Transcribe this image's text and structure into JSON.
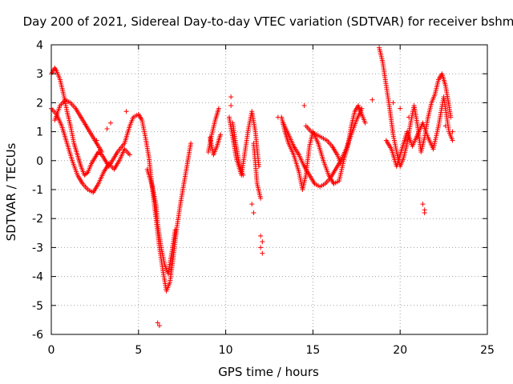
{
  "chart_data": {
    "type": "scatter",
    "title": "Day 200 of 2021, Sidereal Day-to-day VTEC variation (SDTVAR) for receiver bshm",
    "xlabel": "GPS time / hours",
    "ylabel": "SDTVAR / TECUs",
    "xlim": [
      0,
      25
    ],
    "ylim": [
      -6,
      4
    ],
    "x_ticks": [
      0,
      5,
      10,
      15,
      20,
      25
    ],
    "y_ticks": [
      -6,
      -5,
      -4,
      -3,
      -2,
      -1,
      0,
      1,
      2,
      3,
      4
    ],
    "grid": true,
    "marker": "+",
    "color": "#ff0000",
    "series": [
      {
        "name": "SDTVAR",
        "trace": [
          [
            0.0,
            3.0
          ],
          [
            0.1,
            3.1
          ],
          [
            0.2,
            3.2
          ],
          [
            0.3,
            3.1
          ],
          [
            0.5,
            2.8
          ],
          [
            0.7,
            2.3
          ],
          [
            0.9,
            1.7
          ],
          [
            1.1,
            1.2
          ],
          [
            1.3,
            0.6
          ],
          [
            1.5,
            0.2
          ],
          [
            1.7,
            -0.2
          ],
          [
            1.9,
            -0.5
          ],
          [
            2.1,
            -0.4
          ],
          [
            2.3,
            -0.1
          ],
          [
            2.5,
            0.1
          ],
          [
            2.7,
            0.3
          ],
          [
            2.9,
            0.2
          ],
          [
            3.1,
            0.0
          ],
          [
            3.3,
            -0.2
          ],
          [
            3.5,
            0.0
          ],
          [
            3.8,
            0.3
          ],
          [
            4.2,
            0.6
          ],
          [
            4.5,
            1.2
          ],
          [
            4.7,
            1.5
          ],
          [
            5.0,
            1.6
          ],
          [
            5.2,
            1.4
          ],
          [
            5.4,
            0.8
          ],
          [
            5.6,
            0.1
          ],
          [
            5.8,
            -1.0
          ],
          [
            6.0,
            -2.0
          ],
          [
            6.2,
            -3.0
          ],
          [
            6.4,
            -3.8
          ],
          [
            6.6,
            -4.5
          ],
          [
            6.8,
            -4.2
          ],
          [
            7.0,
            -3.3
          ],
          [
            7.2,
            -2.3
          ],
          [
            7.4,
            -1.5
          ],
          [
            7.6,
            -0.8
          ],
          [
            7.8,
            -0.1
          ],
          [
            8.0,
            0.6
          ],
          [
            9.0,
            0.3
          ],
          [
            9.2,
            0.9
          ],
          [
            9.4,
            1.4
          ],
          [
            9.6,
            1.8
          ],
          [
            10.2,
            1.5
          ],
          [
            10.4,
            0.8
          ],
          [
            10.6,
            0.1
          ],
          [
            10.9,
            -0.5
          ],
          [
            11.1,
            0.3
          ],
          [
            11.3,
            1.1
          ],
          [
            11.5,
            1.7
          ],
          [
            11.7,
            1.0
          ],
          [
            11.9,
            -0.2
          ],
          [
            13.2,
            1.5
          ],
          [
            13.4,
            1.0
          ],
          [
            13.6,
            0.6
          ],
          [
            13.9,
            0.2
          ],
          [
            14.2,
            -0.4
          ],
          [
            14.4,
            -1.0
          ],
          [
            14.6,
            -0.5
          ],
          [
            14.8,
            0.5
          ],
          [
            15.0,
            1.0
          ],
          [
            15.3,
            0.6
          ],
          [
            15.6,
            0.0
          ],
          [
            15.9,
            -0.5
          ],
          [
            16.2,
            -0.8
          ],
          [
            16.5,
            -0.7
          ],
          [
            16.8,
            0.1
          ],
          [
            17.0,
            0.5
          ],
          [
            17.2,
            1.2
          ],
          [
            17.4,
            1.7
          ],
          [
            17.6,
            1.9
          ],
          [
            17.8,
            1.6
          ],
          [
            18.0,
            1.3
          ],
          [
            18.8,
            3.9
          ],
          [
            19.0,
            3.4
          ],
          [
            19.2,
            2.6
          ],
          [
            19.4,
            1.8
          ],
          [
            19.6,
            0.9
          ],
          [
            19.8,
            0.3
          ],
          [
            20.0,
            -0.2
          ],
          [
            20.2,
            0.1
          ],
          [
            20.4,
            0.6
          ],
          [
            20.6,
            1.3
          ],
          [
            20.8,
            1.9
          ],
          [
            21.0,
            1.2
          ],
          [
            21.2,
            0.3
          ],
          [
            21.4,
            0.8
          ],
          [
            21.6,
            1.5
          ],
          [
            21.8,
            2.0
          ],
          [
            22.0,
            2.3
          ],
          [
            22.2,
            2.8
          ],
          [
            22.4,
            3.0
          ],
          [
            22.6,
            2.6
          ],
          [
            22.8,
            1.9
          ],
          [
            22.9,
            1.5
          ]
        ],
        "trace2": [
          [
            0.0,
            1.8
          ],
          [
            0.3,
            1.6
          ],
          [
            0.6,
            1.2
          ],
          [
            0.9,
            0.6
          ],
          [
            1.2,
            0.0
          ],
          [
            1.5,
            -0.5
          ],
          [
            1.8,
            -0.8
          ],
          [
            2.1,
            -1.0
          ],
          [
            2.4,
            -1.1
          ],
          [
            2.7,
            -0.8
          ],
          [
            3.0,
            -0.4
          ],
          [
            3.3,
            -0.1
          ],
          [
            3.6,
            -0.3
          ],
          [
            3.9,
            0.0
          ],
          [
            4.2,
            0.4
          ],
          [
            4.5,
            0.2
          ],
          [
            0.2,
            1.4
          ],
          [
            0.5,
            1.9
          ],
          [
            0.8,
            2.1
          ],
          [
            1.1,
            2.0
          ],
          [
            1.4,
            1.8
          ],
          [
            1.7,
            1.5
          ],
          [
            2.0,
            1.2
          ],
          [
            2.3,
            0.9
          ],
          [
            2.6,
            0.6
          ],
          [
            2.9,
            0.3
          ],
          [
            5.5,
            -0.3
          ],
          [
            5.8,
            -0.9
          ],
          [
            6.0,
            -1.5
          ],
          [
            6.1,
            -2.2
          ],
          [
            6.3,
            -3.0
          ],
          [
            6.5,
            -3.6
          ],
          [
            6.7,
            -3.9
          ],
          [
            6.9,
            -3.2
          ],
          [
            7.1,
            -2.4
          ],
          [
            9.1,
            0.8
          ],
          [
            9.3,
            0.2
          ],
          [
            9.5,
            0.5
          ],
          [
            9.7,
            0.9
          ],
          [
            10.4,
            1.3
          ],
          [
            10.6,
            0.5
          ],
          [
            10.8,
            -0.2
          ],
          [
            11.0,
            -0.5
          ],
          [
            11.6,
            0.6
          ],
          [
            11.8,
            -0.8
          ],
          [
            12.0,
            -1.3
          ],
          [
            13.3,
            1.3
          ],
          [
            13.6,
            0.9
          ],
          [
            13.9,
            0.5
          ],
          [
            14.2,
            0.2
          ],
          [
            14.5,
            -0.2
          ],
          [
            14.8,
            -0.5
          ],
          [
            15.1,
            -0.8
          ],
          [
            15.4,
            -0.9
          ],
          [
            15.7,
            -0.8
          ],
          [
            16.0,
            -0.6
          ],
          [
            16.3,
            -0.3
          ],
          [
            16.6,
            0.0
          ],
          [
            16.9,
            0.4
          ],
          [
            17.2,
            0.9
          ],
          [
            17.5,
            1.4
          ],
          [
            17.8,
            1.8
          ],
          [
            14.6,
            1.2
          ],
          [
            14.9,
            1.0
          ],
          [
            15.2,
            0.9
          ],
          [
            15.5,
            0.8
          ],
          [
            15.8,
            0.7
          ],
          [
            16.1,
            0.5
          ],
          [
            16.4,
            0.2
          ],
          [
            16.6,
            -0.1
          ],
          [
            19.2,
            0.7
          ],
          [
            19.5,
            0.4
          ],
          [
            19.8,
            -0.2
          ],
          [
            20.1,
            0.4
          ],
          [
            20.4,
            1.0
          ],
          [
            20.7,
            0.5
          ],
          [
            21.0,
            0.9
          ],
          [
            21.3,
            1.3
          ],
          [
            21.6,
            0.8
          ],
          [
            21.9,
            0.4
          ],
          [
            22.2,
            1.2
          ],
          [
            22.5,
            2.2
          ],
          [
            22.8,
            1.0
          ],
          [
            23.0,
            0.7
          ]
        ],
        "points": [
          [
            6.1,
            -5.6
          ],
          [
            6.2,
            -5.7
          ],
          [
            10.3,
            2.2
          ],
          [
            10.3,
            1.9
          ],
          [
            11.5,
            -1.5
          ],
          [
            11.6,
            -1.8
          ],
          [
            12.0,
            -2.6
          ],
          [
            12.1,
            -2.8
          ],
          [
            12.0,
            -3.0
          ],
          [
            12.1,
            -3.2
          ],
          [
            21.3,
            -1.5
          ],
          [
            21.4,
            -1.7
          ],
          [
            21.4,
            -1.8
          ],
          [
            18.4,
            2.1
          ],
          [
            19.6,
            2.0
          ],
          [
            20.0,
            1.8
          ],
          [
            20.5,
            1.5
          ],
          [
            14.5,
            1.9
          ],
          [
            13.0,
            1.5
          ],
          [
            2.6,
            0.7
          ],
          [
            3.2,
            1.1
          ],
          [
            3.4,
            1.3
          ],
          [
            4.3,
            1.7
          ],
          [
            22.6,
            1.2
          ],
          [
            23.0,
            1.0
          ]
        ]
      }
    ]
  }
}
